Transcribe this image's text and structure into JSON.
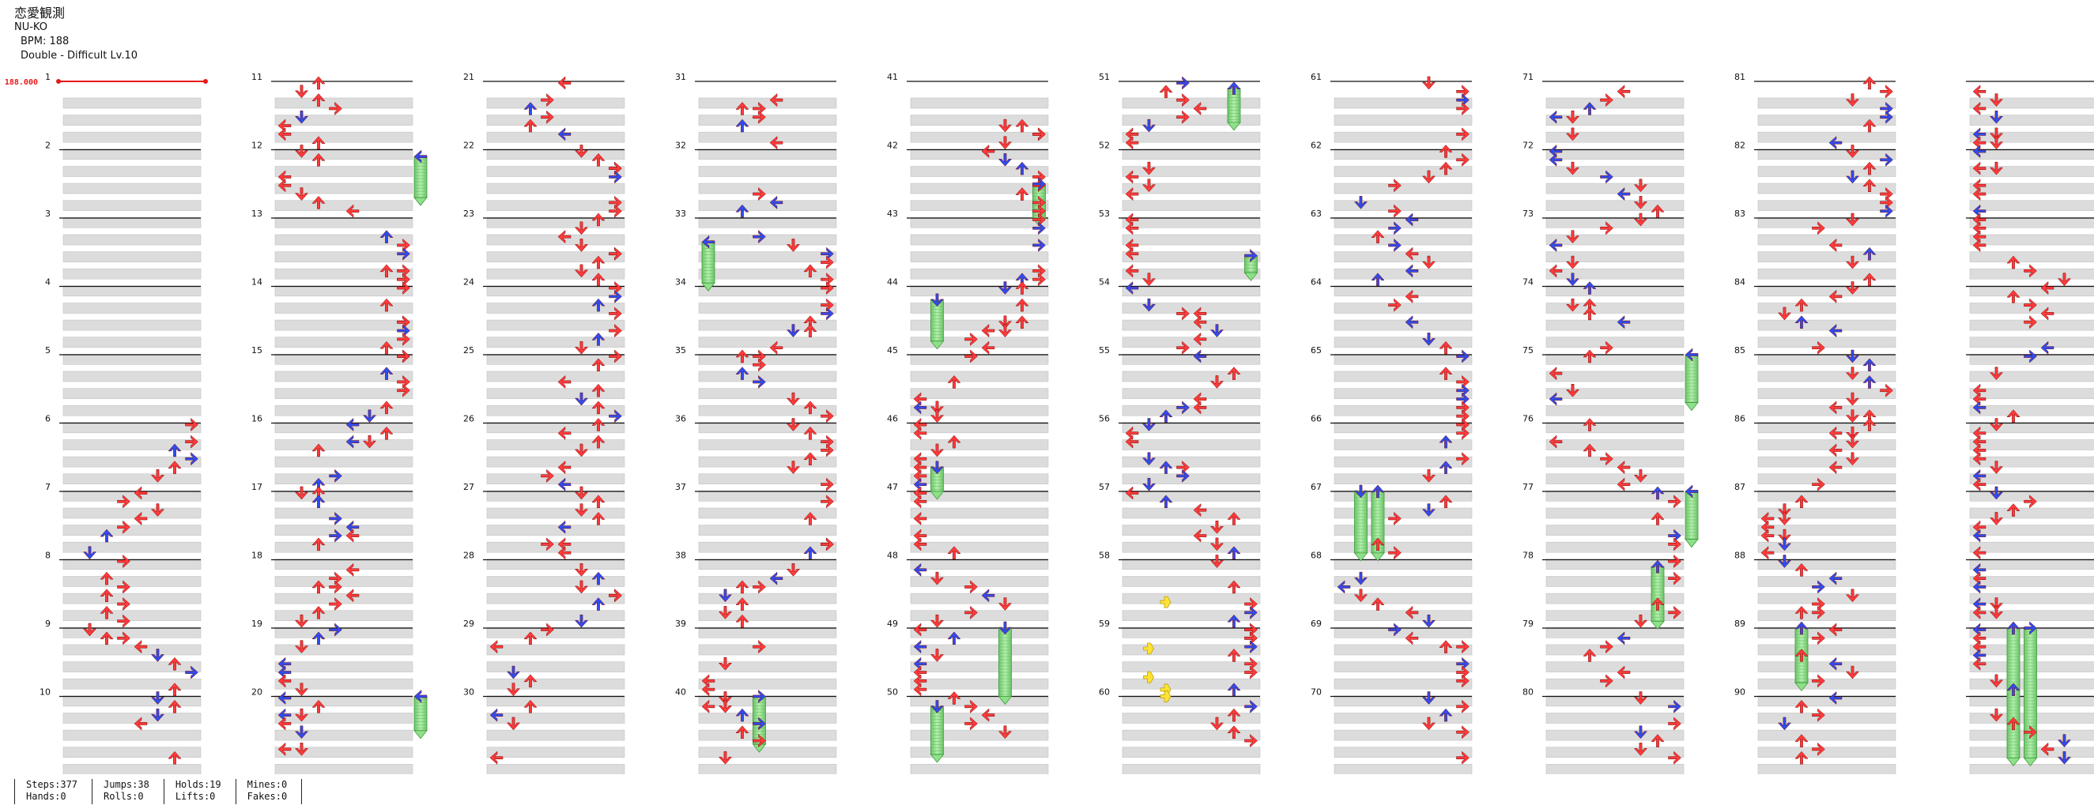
{
  "song": {
    "title": "恋愛観測",
    "artist": "NU-KO",
    "bpm_label": "BPM: 188",
    "chart_label": "Double - Difficult Lv.10"
  },
  "bpm_marker": "188.000",
  "colors": {
    "red_arrow": "#ff3b3b",
    "blue_arrow": "#2e4df0",
    "hold_green": "#8fe08a",
    "mine_yellow": "#ffe234",
    "lane_stripe": "#dcdcdc",
    "bpm_red": "#e81818"
  },
  "layout_info": {
    "columns": 10,
    "measures_per_column": 10
  },
  "measure_numbers": [
    "1",
    "2",
    "3",
    "4",
    "5",
    "6",
    "7",
    "8",
    "9",
    "10",
    "11",
    "12",
    "13",
    "14",
    "15",
    "16",
    "17",
    "18",
    "19",
    "20",
    "21",
    "22",
    "23",
    "24",
    "25",
    "26",
    "27",
    "28",
    "29",
    "30",
    "31",
    "32",
    "33",
    "34",
    "35",
    "36",
    "37",
    "38",
    "39",
    "40",
    "41",
    "42",
    "43",
    "44",
    "45",
    "46",
    "47",
    "48",
    "49",
    "50",
    "51",
    "52",
    "53",
    "54",
    "55",
    "56",
    "57",
    "58",
    "59",
    "60",
    "61",
    "62",
    "63",
    "64",
    "65",
    "66",
    "67",
    "68",
    "69",
    "70",
    "71",
    "72",
    "73",
    "74",
    "75",
    "76",
    "77",
    "78",
    "79",
    "80",
    "81",
    "82",
    "83",
    "84",
    "85",
    "86",
    "87",
    "88",
    "89",
    "90"
  ],
  "stats": [
    {
      "a": "Steps:377",
      "b": "Hands:0"
    },
    {
      "a": "Jumps:38",
      "b": "Rolls:0"
    },
    {
      "a": "Holds:19",
      "b": "Lifts:0"
    },
    {
      "a": "Mines:0",
      "b": "Fakes:0"
    }
  ]
}
